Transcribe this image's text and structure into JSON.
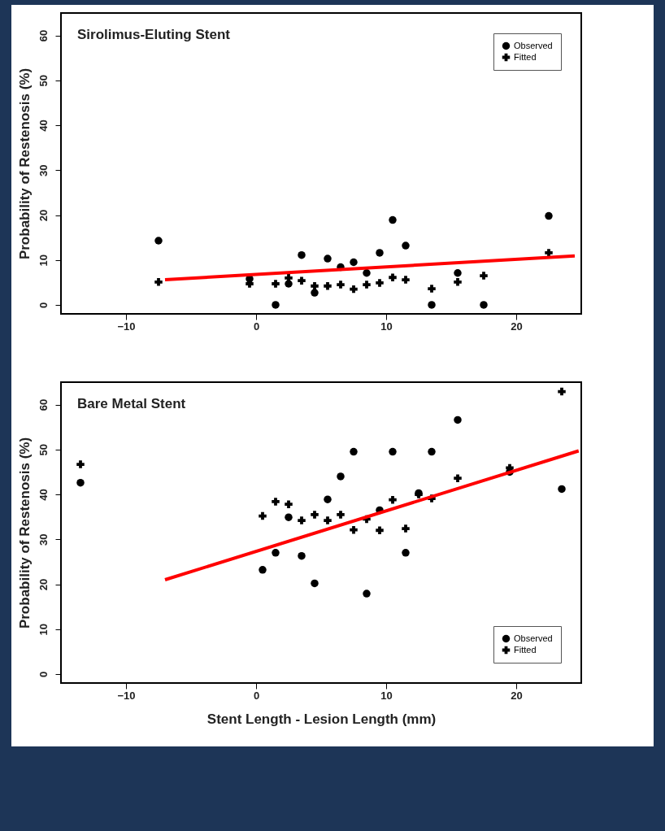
{
  "chart_data": [
    {
      "type": "scatter",
      "title": "Sirolimus-Eluting Stent",
      "ylabel": "Probability of Restenosis (%)",
      "xlim": [
        -15,
        25
      ],
      "ylim": [
        -2,
        65
      ],
      "xticks": [
        -10,
        0,
        10,
        20
      ],
      "yticks": [
        0,
        10,
        20,
        30,
        40,
        50,
        60
      ],
      "grid": false,
      "legend": "top right",
      "series": [
        {
          "name": "Observed",
          "marker": "circle",
          "color": "#000000",
          "x": [
            -7.5,
            -0.5,
            1.5,
            2.5,
            3.5,
            4.5,
            5.5,
            6.5,
            7.5,
            8.5,
            9.5,
            10.5,
            11.5,
            13.5,
            15.5,
            17.5,
            22.5
          ],
          "values": [
            14.3,
            5.8,
            0,
            4.7,
            11.1,
            2.7,
            10.3,
            8.4,
            9.5,
            7.1,
            11.6,
            18.9,
            13.2,
            0,
            7.1,
            0,
            19.8
          ]
        },
        {
          "name": "Fitted",
          "marker": "cross",
          "color": "#000000",
          "x": [
            -7.5,
            -0.5,
            1.5,
            2.5,
            3.5,
            4.5,
            5.5,
            6.5,
            7.5,
            8.5,
            9.5,
            10.5,
            11.5,
            13.5,
            15.5,
            17.5,
            22.5
          ],
          "values": [
            5.1,
            4.7,
            4.7,
            6.0,
            5.4,
            4.2,
            4.2,
            4.5,
            3.5,
            4.5,
            4.9,
            6.1,
            5.6,
            3.6,
            5.1,
            6.5,
            11.6
          ]
        },
        {
          "type": "line",
          "color": "#ff0000",
          "x": [
            -7,
            24.5
          ],
          "values": [
            5.6,
            10.9
          ]
        }
      ]
    },
    {
      "type": "scatter",
      "title": "Bare Metal Stent",
      "xlabel": "Stent Length - Lesion Length (mm)",
      "ylabel": "Probability of Restenosis (%)",
      "xlim": [
        -15,
        25
      ],
      "ylim": [
        -2,
        65
      ],
      "xticks": [
        -10,
        0,
        10,
        20
      ],
      "yticks": [
        0,
        10,
        20,
        30,
        40,
        50,
        60
      ],
      "grid": false,
      "legend": "bottom right",
      "series": [
        {
          "name": "Observed",
          "marker": "circle",
          "color": "#000000",
          "x": [
            -13.5,
            0.5,
            1.5,
            2.5,
            3.5,
            4.5,
            5.5,
            6.5,
            7.5,
            8.5,
            9.5,
            10.5,
            11.5,
            12.5,
            13.5,
            15.5,
            19.5,
            23.5
          ],
          "values": [
            42.6,
            23.2,
            27.0,
            34.9,
            26.3,
            20.2,
            38.9,
            44.0,
            49.5,
            17.9,
            36.5,
            49.5,
            27.0,
            40.3,
            49.5,
            56.6,
            45.0,
            41.2
          ]
        },
        {
          "name": "Fitted",
          "marker": "cross",
          "color": "#000000",
          "x": [
            -13.5,
            0.5,
            1.5,
            2.5,
            3.5,
            4.5,
            5.5,
            6.5,
            7.5,
            8.5,
            9.5,
            10.5,
            11.5,
            12.5,
            13.5,
            15.5,
            19.5,
            23.5
          ],
          "values": [
            46.7,
            35.2,
            38.4,
            37.8,
            34.2,
            35.5,
            34.2,
            35.5,
            32.1,
            34.5,
            32.0,
            38.8,
            32.4,
            40.0,
            39.1,
            43.6,
            45.9,
            62.9
          ]
        },
        {
          "type": "line",
          "color": "#ff0000",
          "x": [
            -7,
            24.8
          ],
          "values": [
            21,
            49.7
          ]
        }
      ]
    }
  ]
}
